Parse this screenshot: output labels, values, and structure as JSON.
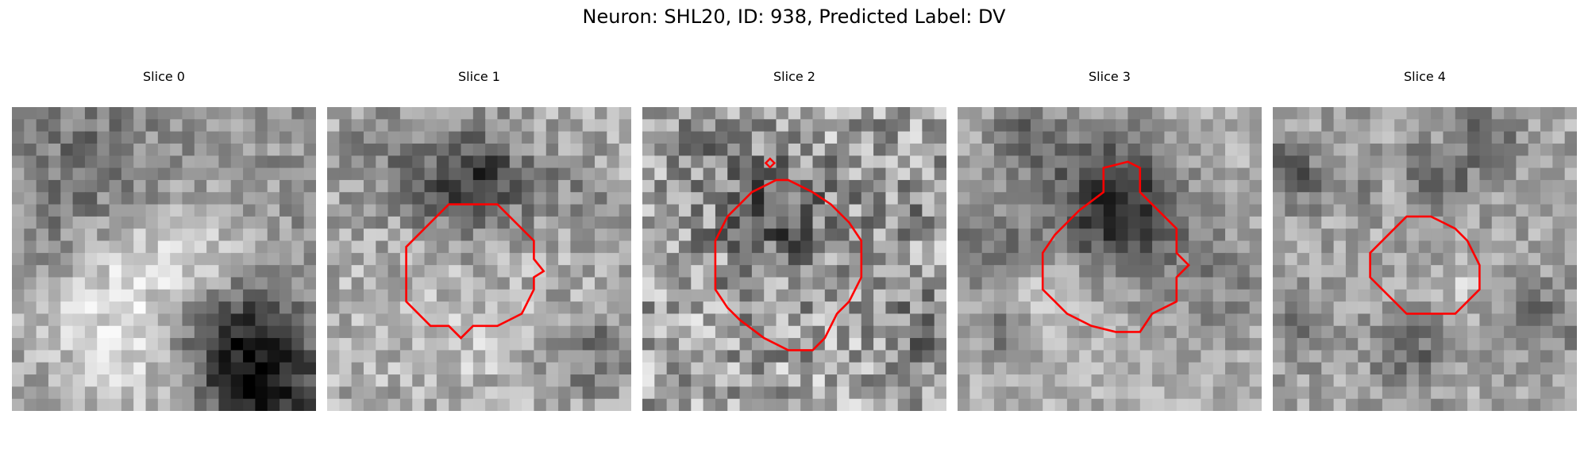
{
  "figure": {
    "title": "Neuron: SHL20, ID: 938, Predicted Label: DV"
  },
  "colors": {
    "contour": "#ff0000",
    "background": "#ffffff"
  },
  "slices": [
    {
      "label": "Slice 0",
      "has_contour": false
    },
    {
      "label": "Slice 1",
      "has_contour": true
    },
    {
      "label": "Slice 2",
      "has_contour": true
    },
    {
      "label": "Slice 3",
      "has_contour": true
    },
    {
      "label": "Slice 4",
      "has_contour": true
    }
  ]
}
